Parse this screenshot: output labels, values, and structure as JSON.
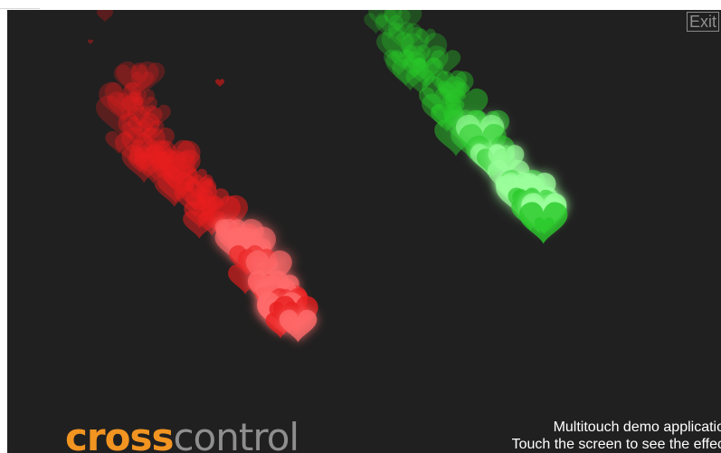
{
  "window": {
    "exit_label": "Exit"
  },
  "logo": {
    "part1": "cross",
    "part2": "control"
  },
  "caption": {
    "line1": "Multitouch demo applicatio",
    "line2": "Touch the screen to see the effec"
  },
  "colors": {
    "background": "#202020",
    "red_hearts": "#ff2a2a",
    "green_hearts": "#3cff3c",
    "logo_orange": "#f29421",
    "logo_gray": "#8e8e8e"
  }
}
